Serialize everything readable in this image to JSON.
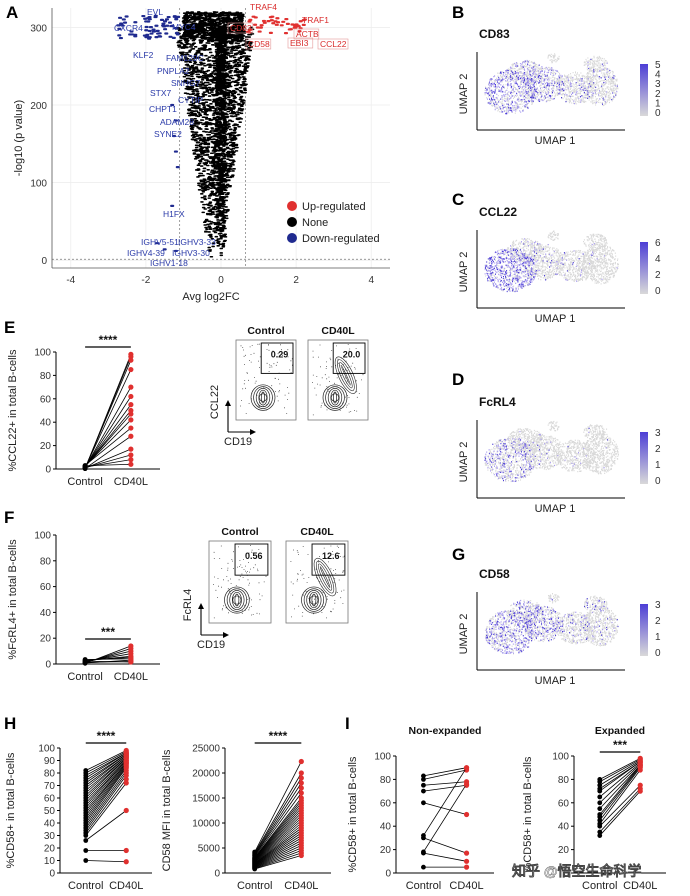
{
  "panels": {
    "A": "A",
    "B": "B",
    "C": "C",
    "D": "D",
    "E": "E",
    "F": "F",
    "G": "G",
    "H": "H",
    "I": "I"
  },
  "colors": {
    "up": "#e0302f",
    "none": "#000000",
    "down": "#1f2a8f",
    "umap_low": "#d9d9d9",
    "umap_high": "#4d3fd6"
  },
  "chart_data": [
    {
      "id": "A",
      "type": "scatter",
      "xlabel": "Avg log2FC",
      "ylabel": "-log10 (p value)",
      "xlim": [
        -4.5,
        4.5
      ],
      "ylim": [
        -10,
        325
      ],
      "xticks": [
        "-4",
        "-2",
        "0",
        "2",
        "4"
      ],
      "yticks": [
        "0",
        "100",
        "200",
        "300"
      ],
      "legend": {
        "placement": "right",
        "entries": [
          "Up-regulated",
          "None",
          "Down-regulated"
        ]
      },
      "up_labels": [
        "TRAF4",
        "TRAF1",
        "CD83",
        "ACTB",
        "CD58",
        "EBI3",
        "CCL22"
      ],
      "down_labels": [
        "EVL",
        "CXCR4",
        "MYC4",
        "KLF2",
        "FAM129C",
        "PNPLA2",
        "SNHG7",
        "STX7",
        "CYTIP",
        "CHPT1",
        "ADAM28",
        "SYNE2",
        "H1FX",
        "IGHV5-51",
        "IGHV3-33",
        "IGHV4-39",
        "IGHV3-30",
        "IGHV1-18"
      ]
    },
    {
      "id": "B",
      "type": "umap",
      "title": "CD83",
      "xlabel": "UMAP 1",
      "ylabel": "UMAP 2",
      "scale": [
        "5",
        "4",
        "3",
        "2",
        "1",
        "0"
      ]
    },
    {
      "id": "C",
      "type": "umap",
      "title": "CCL22",
      "xlabel": "UMAP 1",
      "ylabel": "UMAP 2",
      "scale": [
        "6",
        "4",
        "2",
        "0"
      ]
    },
    {
      "id": "D",
      "type": "umap",
      "title": "FcRL4",
      "xlabel": "UMAP 1",
      "ylabel": "UMAP 2",
      "scale": [
        "3",
        "2",
        "1",
        "0"
      ]
    },
    {
      "id": "G",
      "type": "umap",
      "title": "CD58",
      "xlabel": "UMAP 1",
      "ylabel": "UMAP 2",
      "scale": [
        "3",
        "2",
        "1",
        "0"
      ]
    },
    {
      "id": "E",
      "type": "line",
      "ylabel": "%CCL22+ in total B-cells",
      "categories": [
        "Control",
        "CD40L"
      ],
      "ylim": [
        0,
        100
      ],
      "yticks": [
        "0",
        "20",
        "40",
        "60",
        "80",
        "100"
      ],
      "sig": "****",
      "control": [
        0.3,
        0.5,
        0.8,
        1,
        1.2,
        1.5,
        1.8,
        2,
        2.2,
        2.5,
        3,
        0.4,
        0.6,
        1.1,
        1.6,
        2.8
      ],
      "cd40l": [
        98,
        96,
        93,
        85,
        70,
        62,
        55,
        50,
        47,
        42,
        35,
        28,
        17,
        12,
        8,
        4
      ],
      "flow": {
        "xaxis": "CD19",
        "yaxis": "CCL22",
        "plots": [
          {
            "title": "Control",
            "pct": "0.29"
          },
          {
            "title": "CD40L",
            "pct": "20.0"
          }
        ]
      }
    },
    {
      "id": "F",
      "type": "line",
      "ylabel": "%FcRL4+ in total B-cells",
      "categories": [
        "Control",
        "CD40L"
      ],
      "ylim": [
        0,
        100
      ],
      "yticks": [
        "0",
        "20",
        "40",
        "60",
        "80",
        "100"
      ],
      "sig": "***",
      "control": [
        0.5,
        1,
        1.5,
        2,
        2.5,
        3,
        3.5,
        0.8,
        1.2,
        2.2
      ],
      "cd40l": [
        14,
        12,
        10,
        8,
        6,
        5,
        4,
        3,
        2,
        1.5
      ],
      "flow": {
        "xaxis": "CD19",
        "yaxis": "FcRL4",
        "plots": [
          {
            "title": "Control",
            "pct": "0.56"
          },
          {
            "title": "CD40L",
            "pct": "12.6"
          }
        ]
      }
    },
    {
      "id": "H1",
      "type": "line",
      "ylabel": "%CD58+ in total B-cells",
      "categories": [
        "Control",
        "CD40L"
      ],
      "ylim": [
        0,
        100
      ],
      "yticks": [
        "0",
        "10",
        "20",
        "30",
        "40",
        "50",
        "60",
        "70",
        "80",
        "90",
        "100"
      ],
      "sig": "****",
      "control": [
        82,
        80,
        78,
        76,
        74,
        72,
        70,
        68,
        66,
        64,
        62,
        60,
        58,
        56,
        54,
        52,
        50,
        48,
        46,
        44,
        42,
        40,
        38,
        36,
        34,
        32,
        30,
        26,
        18,
        10
      ],
      "cd40l": [
        98,
        97,
        96,
        96,
        95,
        95,
        94,
        94,
        93,
        93,
        92,
        92,
        91,
        90,
        90,
        89,
        88,
        88,
        87,
        86,
        85,
        84,
        82,
        80,
        78,
        75,
        72,
        50,
        18,
        9
      ]
    },
    {
      "id": "H2",
      "type": "line",
      "ylabel": "CD58 MFI in total B-cells",
      "categories": [
        "Control",
        "CD40L"
      ],
      "ylim": [
        0,
        25000
      ],
      "yticks": [
        "0",
        "5000",
        "10000",
        "15000",
        "20000",
        "25000"
      ],
      "sig": "****",
      "control": [
        4200,
        4000,
        3800,
        3600,
        3500,
        3300,
        3100,
        3000,
        2900,
        2800,
        2700,
        2600,
        2500,
        2400,
        2300,
        2200,
        2100,
        2000,
        1900,
        1800,
        1700,
        1600,
        1500,
        1400,
        1300,
        1200,
        1100,
        1000,
        900,
        800
      ],
      "cd40l": [
        22300,
        20000,
        19000,
        18000,
        17000,
        16000,
        15000,
        14500,
        14000,
        13500,
        13000,
        12500,
        12000,
        11500,
        11000,
        10500,
        10000,
        9500,
        9000,
        8500,
        8000,
        7500,
        7000,
        6500,
        6000,
        5500,
        5000,
        4500,
        4000,
        3500
      ]
    },
    {
      "id": "I1",
      "type": "line",
      "title": "Non-expanded",
      "ylabel": "%CD58+ in total B-cells",
      "categories": [
        "Control",
        "CD40L"
      ],
      "ylim": [
        0,
        100
      ],
      "yticks": [
        "0",
        "20",
        "40",
        "60",
        "80",
        "100"
      ],
      "control": [
        83,
        80,
        75,
        70,
        60,
        32,
        30,
        18,
        17,
        5
      ],
      "cd40l": [
        90,
        88,
        78,
        75,
        50,
        90,
        17,
        76,
        10,
        5
      ]
    },
    {
      "id": "I2",
      "type": "line",
      "title": "Expanded",
      "ylabel": "%CD58+ in total B-cells",
      "categories": [
        "Control",
        "CD40L"
      ],
      "ylim": [
        0,
        100
      ],
      "yticks": [
        "0",
        "20",
        "40",
        "60",
        "80",
        "100"
      ],
      "sig": "***",
      "control": [
        80,
        78,
        75,
        72,
        70,
        65,
        60,
        55,
        50,
        48,
        45,
        42,
        40,
        35,
        32
      ],
      "cd40l": [
        98,
        97,
        96,
        95,
        95,
        94,
        93,
        92,
        92,
        91,
        90,
        88,
        75,
        72,
        70
      ]
    }
  ],
  "watermark": "知乎 @悟空生命科学"
}
